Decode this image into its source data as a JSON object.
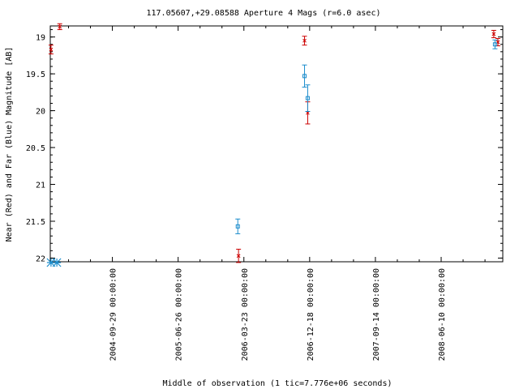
{
  "chart_data": {
    "type": "scatter",
    "title": "117.05607,+29.08588   Aperture 4 Mags (r=6.0 asec)",
    "xlabel": "Middle of observation (1 tic=7.776e+06 seconds)",
    "ylabel": "Near (Red) and Far (Blue) Magnitude [AB]",
    "y_reversed": true,
    "ylim": [
      22.05,
      18.85
    ],
    "xlim": [
      "2004-01-18",
      "2009-02-18"
    ],
    "yticks": [
      19,
      19.5,
      20,
      20.5,
      21,
      21.5,
      22
    ],
    "ytick_labels": [
      "19",
      "19.5",
      "20",
      "20.5",
      "21",
      "21.5",
      "22"
    ],
    "xticks": [
      "2004-09-29",
      "2005-06-26",
      "2006-03-23",
      "2006-12-18",
      "2007-09-14",
      "2008-06-10"
    ],
    "xtick_labels": [
      "2004-09-29 00:00:00",
      "2005-06-26 00:00:00",
      "2006-03-23 00:00:00",
      "2006-12-18 00:00:00",
      "2007-09-14 00:00:00",
      "2008-06-10 00:00:00"
    ],
    "grid": false,
    "series": [
      {
        "color": "#cc0000",
        "marker": "x",
        "points": [
          {
            "x": "2004-01-21",
            "y": 19.17,
            "err": 0.06
          },
          {
            "x": "2004-02-26",
            "y": 18.86,
            "err": 0.04
          },
          {
            "x": "2006-02-29",
            "y": 21.97,
            "err": 0.09
          },
          {
            "x": "2006-11-27",
            "y": 19.05,
            "err": 0.06
          },
          {
            "x": "2006-12-10",
            "y": 20.03,
            "err": 0.15
          },
          {
            "x": "2009-01-12",
            "y": 18.96,
            "err": 0.05
          },
          {
            "x": "2009-01-29",
            "y": 19.07,
            "err": 0.05
          }
        ]
      },
      {
        "color": "#1a8ccc",
        "marker": "square",
        "points": [
          {
            "x": "2006-02-26",
            "y": 21.57,
            "err": 0.1
          },
          {
            "x": "2006-11-27",
            "y": 19.53,
            "err": 0.15
          },
          {
            "x": "2006-12-10",
            "y": 19.83,
            "err": 0.18
          },
          {
            "x": "2009-01-17",
            "y": 19.1,
            "err": 0.06
          }
        ]
      }
    ],
    "limit_markers": [
      {
        "x": "2004-01-21",
        "color": "#1a8ccc",
        "marker": "asterisk"
      },
      {
        "x": "2004-02-14",
        "color": "#1a8ccc",
        "marker": "asterisk"
      }
    ]
  }
}
